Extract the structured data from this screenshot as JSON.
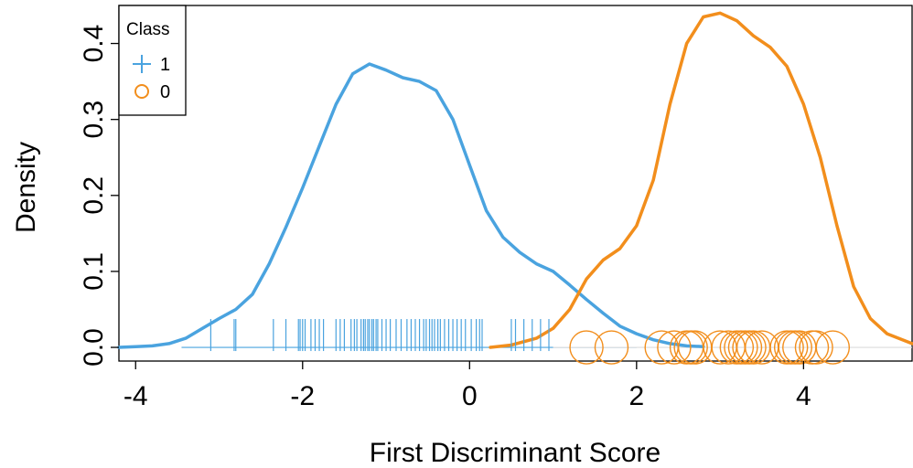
{
  "chart_data": {
    "type": "line",
    "xlabel": "First Discriminant Score",
    "ylabel": "Density",
    "xlim": [
      -4.2,
      5.3
    ],
    "ylim": [
      -0.018,
      0.45
    ],
    "x_ticks": [
      -4,
      -2,
      0,
      2,
      4
    ],
    "y_ticks": [
      0.0,
      0.1,
      0.2,
      0.3,
      0.4
    ],
    "x_tick_labels": [
      "-4",
      "-2",
      "0",
      "2",
      "4"
    ],
    "y_tick_labels": [
      "0.0",
      "0.1",
      "0.2",
      "0.3",
      "0.4"
    ],
    "grid": false,
    "legend": {
      "title": "Class",
      "placement": "top-left",
      "entries": [
        {
          "label": "1",
          "marker": "plus",
          "color": "#4aa3df"
        },
        {
          "label": "0",
          "marker": "circle",
          "color": "#f28e1c"
        }
      ]
    },
    "series": [
      {
        "name": "1",
        "color": "#4aa3df",
        "x": [
          -4.2,
          -4.0,
          -3.8,
          -3.6,
          -3.4,
          -3.2,
          -3.0,
          -2.8,
          -2.6,
          -2.4,
          -2.2,
          -2.0,
          -1.8,
          -1.6,
          -1.4,
          -1.2,
          -1.0,
          -0.8,
          -0.6,
          -0.4,
          -0.2,
          0.0,
          0.2,
          0.4,
          0.6,
          0.8,
          1.0,
          1.2,
          1.4,
          1.6,
          1.8,
          2.0,
          2.2,
          2.4,
          2.6,
          2.8
        ],
        "values": [
          0.0,
          0.001,
          0.002,
          0.005,
          0.012,
          0.025,
          0.038,
          0.05,
          0.07,
          0.11,
          0.158,
          0.21,
          0.265,
          0.32,
          0.36,
          0.373,
          0.365,
          0.355,
          0.35,
          0.338,
          0.3,
          0.24,
          0.18,
          0.145,
          0.125,
          0.11,
          0.1,
          0.082,
          0.063,
          0.045,
          0.028,
          0.018,
          0.01,
          0.005,
          0.002,
          0.001
        ]
      },
      {
        "name": "0",
        "color": "#f28e1c",
        "x": [
          0.25,
          0.5,
          0.8,
          1.0,
          1.2,
          1.4,
          1.6,
          1.8,
          2.0,
          2.2,
          2.4,
          2.6,
          2.8,
          3.0,
          3.2,
          3.4,
          3.6,
          3.8,
          4.0,
          4.2,
          4.4,
          4.6,
          4.8,
          5.0,
          5.3
        ],
        "values": [
          0.0,
          0.003,
          0.012,
          0.025,
          0.05,
          0.09,
          0.115,
          0.13,
          0.16,
          0.22,
          0.32,
          0.4,
          0.435,
          0.44,
          0.43,
          0.41,
          0.395,
          0.37,
          0.32,
          0.25,
          0.16,
          0.08,
          0.038,
          0.018,
          0.005
        ]
      }
    ],
    "rug_class_1": [
      -3.1,
      -2.82,
      -2.8,
      -2.35,
      -2.2,
      -2.05,
      -2.03,
      -2.0,
      -1.97,
      -1.9,
      -1.85,
      -1.8,
      -1.75,
      -1.6,
      -1.55,
      -1.5,
      -1.42,
      -1.38,
      -1.35,
      -1.3,
      -1.27,
      -1.25,
      -1.22,
      -1.2,
      -1.17,
      -1.15,
      -1.12,
      -1.1,
      -1.05,
      -1.0,
      -0.95,
      -0.88,
      -0.82,
      -0.75,
      -0.7,
      -0.65,
      -0.6,
      -0.55,
      -0.52,
      -0.48,
      -0.45,
      -0.42,
      -0.38,
      -0.35,
      -0.3,
      -0.25,
      -0.2,
      -0.15,
      -0.1,
      -0.05,
      0.02,
      0.08,
      0.12,
      0.15,
      0.5,
      0.55,
      0.65,
      0.75,
      0.85,
      0.95
    ],
    "points_class_0": [
      1.4,
      1.7,
      2.3,
      2.45,
      2.6,
      2.65,
      2.7,
      3.0,
      3.1,
      3.2,
      3.25,
      3.3,
      3.35,
      3.4,
      3.5,
      3.8,
      3.85,
      3.9,
      3.95,
      4.1,
      4.15,
      4.35
    ]
  }
}
